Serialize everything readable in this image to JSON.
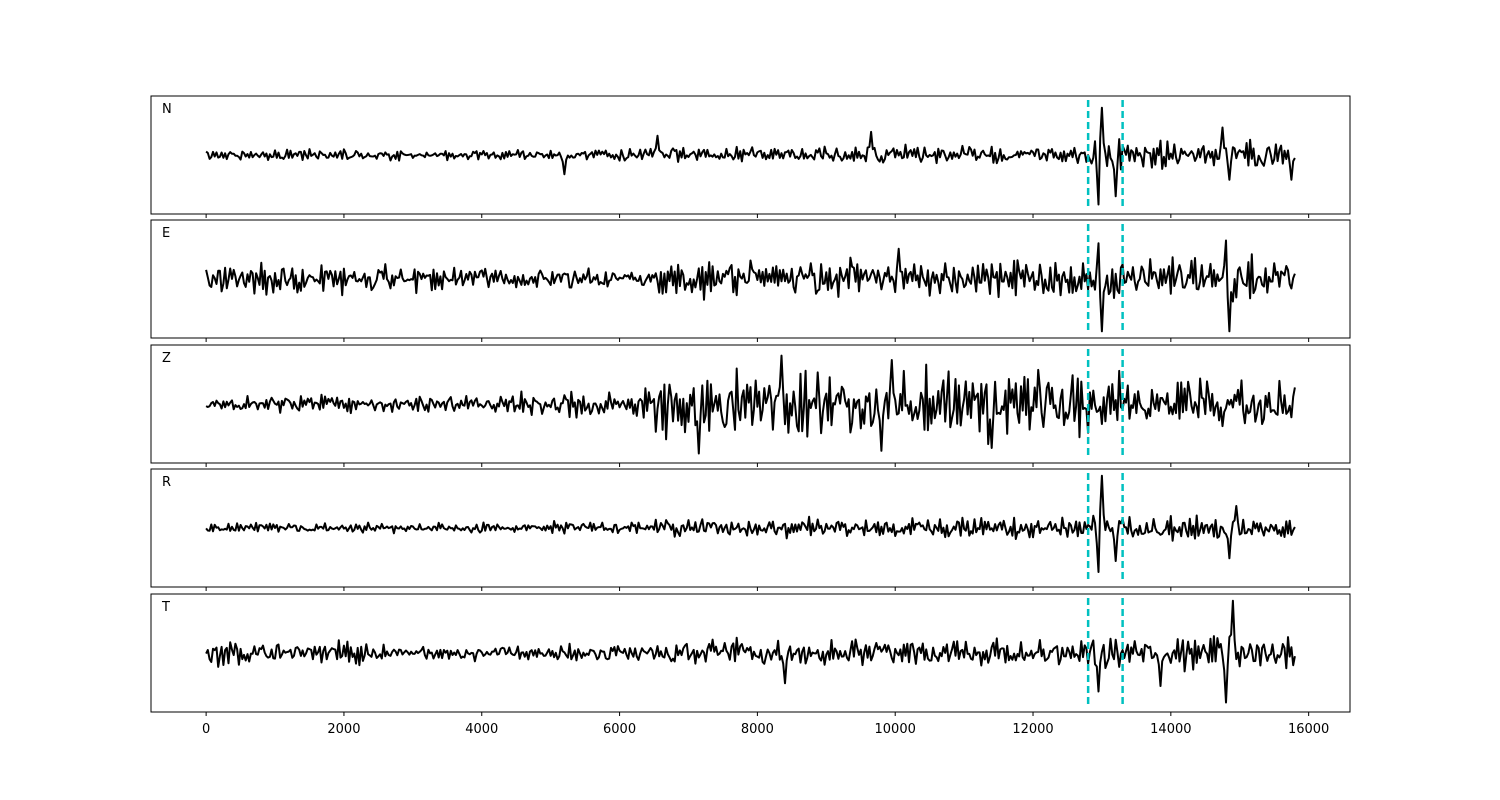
{
  "chart_data": {
    "type": "line",
    "title": "",
    "xlabel": "",
    "ylabel": "",
    "xlim": [
      -800,
      16600
    ],
    "x_ticks": [
      "0",
      "2000",
      "4000",
      "6000",
      "8000",
      "10000",
      "12000",
      "14000",
      "16000"
    ],
    "x_tick_values": [
      0,
      2000,
      4000,
      6000,
      8000,
      10000,
      12000,
      14000,
      16000
    ],
    "y_ticks_shown": false,
    "markers": {
      "color": "#00c0c0",
      "style": "dashed",
      "x": [
        12800,
        13300
      ]
    },
    "trace_color": "#000000",
    "x_start": 0,
    "x_end": 15800,
    "x_step": 25,
    "panels": [
      {
        "label": "N",
        "ylim": [
          -1,
          1
        ],
        "segments": [
          {
            "x0": 0,
            "x1": 5000,
            "amp": 0.1
          },
          {
            "x0": 5000,
            "x1": 6500,
            "amp": 0.13
          },
          {
            "x0": 6500,
            "x1": 9500,
            "amp": 0.17
          },
          {
            "x0": 9500,
            "x1": 12800,
            "amp": 0.18
          },
          {
            "x0": 12800,
            "x1": 13300,
            "amp": 0.3
          },
          {
            "x0": 13300,
            "x1": 15800,
            "amp": 0.28
          }
        ],
        "events": [
          {
            "x": 5200,
            "value": -0.35
          },
          {
            "x": 6550,
            "value": 0.35
          },
          {
            "x": 9650,
            "value": 0.42
          },
          {
            "x": 12950,
            "value": -0.9
          },
          {
            "x": 13000,
            "value": 0.86
          },
          {
            "x": 13200,
            "value": -0.75
          },
          {
            "x": 14750,
            "value": 0.5
          },
          {
            "x": 14850,
            "value": -0.45
          },
          {
            "x": 15750,
            "value": -0.45
          }
        ]
      },
      {
        "label": "E",
        "ylim": [
          -1,
          1
        ],
        "segments": [
          {
            "x0": 0,
            "x1": 2600,
            "amp": 0.3
          },
          {
            "x0": 2600,
            "x1": 6500,
            "amp": 0.22
          },
          {
            "x0": 6500,
            "x1": 12800,
            "amp": 0.38
          },
          {
            "x0": 12800,
            "x1": 13300,
            "amp": 0.45
          },
          {
            "x0": 13300,
            "x1": 15800,
            "amp": 0.38
          }
        ],
        "events": [
          {
            "x": 12950,
            "value": 0.65
          },
          {
            "x": 13000,
            "value": -0.95
          },
          {
            "x": 14800,
            "value": 0.7
          },
          {
            "x": 14850,
            "value": -0.95
          },
          {
            "x": 10050,
            "value": 0.55
          }
        ]
      },
      {
        "label": "Z",
        "ylim": [
          -1,
          1
        ],
        "segments": [
          {
            "x0": 0,
            "x1": 4500,
            "amp": 0.17
          },
          {
            "x0": 4500,
            "x1": 6500,
            "amp": 0.28
          },
          {
            "x0": 6500,
            "x1": 12800,
            "amp": 0.65
          },
          {
            "x0": 12800,
            "x1": 13300,
            "amp": 0.55
          },
          {
            "x0": 13300,
            "x1": 15800,
            "amp": 0.45
          }
        ],
        "events": [
          {
            "x": 7150,
            "value": -0.9
          },
          {
            "x": 8350,
            "value": 0.88
          },
          {
            "x": 9800,
            "value": -0.85
          },
          {
            "x": 9950,
            "value": 0.8
          },
          {
            "x": 11400,
            "value": -0.8
          }
        ]
      },
      {
        "label": "R",
        "ylim": [
          -1,
          1
        ],
        "segments": [
          {
            "x0": 0,
            "x1": 5000,
            "amp": 0.1
          },
          {
            "x0": 5000,
            "x1": 6500,
            "amp": 0.13
          },
          {
            "x0": 6500,
            "x1": 12800,
            "amp": 0.2
          },
          {
            "x0": 12800,
            "x1": 13300,
            "amp": 0.3
          },
          {
            "x0": 13300,
            "x1": 15800,
            "amp": 0.22
          }
        ],
        "events": [
          {
            "x": 12950,
            "value": -0.8
          },
          {
            "x": 13000,
            "value": 0.95
          },
          {
            "x": 13200,
            "value": -0.6
          },
          {
            "x": 14850,
            "value": -0.55
          },
          {
            "x": 14950,
            "value": 0.4
          }
        ]
      },
      {
        "label": "T",
        "ylim": [
          -1,
          1
        ],
        "segments": [
          {
            "x0": 0,
            "x1": 2600,
            "amp": 0.23
          },
          {
            "x0": 2600,
            "x1": 6500,
            "amp": 0.16
          },
          {
            "x0": 6500,
            "x1": 12800,
            "amp": 0.28
          },
          {
            "x0": 12800,
            "x1": 13300,
            "amp": 0.33
          },
          {
            "x0": 13300,
            "x1": 15800,
            "amp": 0.35
          }
        ],
        "events": [
          {
            "x": 12950,
            "value": -0.7
          },
          {
            "x": 13850,
            "value": -0.6
          },
          {
            "x": 14800,
            "value": -0.9
          },
          {
            "x": 14900,
            "value": 0.95
          },
          {
            "x": 8400,
            "value": -0.55
          }
        ]
      }
    ]
  }
}
